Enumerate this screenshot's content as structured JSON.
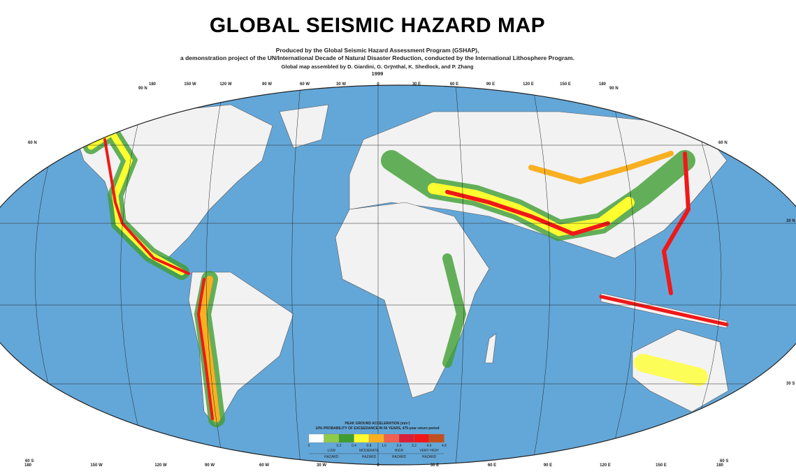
{
  "title": "GLOBAL SEISMIC HAZARD MAP",
  "subtitle1": "Produced by the Global Seismic Hazard Assessment Program (GSHAP),",
  "subtitle2": "a demonstration project of the UN/International Decade of Natural Disaster Reduction, conducted by the International Lithosphere Program.",
  "credits": "Global map assembled by D. Giardini, G. Grÿnthal, K. Shedlock, and P. Zhang",
  "year": "1999",
  "longitudes": [
    "180",
    "150 W",
    "120 W",
    "90 W",
    "60 W",
    "30 W",
    "0",
    "30 E",
    "60 E",
    "90 E",
    "120 E",
    "150 E",
    "180"
  ],
  "latitudes": {
    "top": "90 N",
    "n60": "60 N",
    "n30": "30 N",
    "s30": "30 S",
    "bottom": "60 S"
  },
  "legend": {
    "title": "PEAK GROUND ACCELERATION (m/s²)",
    "subtitle": "10% PROBABILITY OF EXCEEDANCE IN 50 YEARS, 475-year return period",
    "ticks": [
      "0",
      "0.2",
      "0.4",
      "0.8",
      "1.6",
      "2.4",
      "3.2",
      "4.0",
      "4.8"
    ],
    "colors": [
      "#ffffff",
      "#8fcb4a",
      "#3f9e32",
      "#ffff30",
      "#f8b020",
      "#f06050",
      "#d8203a",
      "#f01818",
      "#c05020"
    ],
    "classes": [
      {
        "top": "LOW",
        "bottom": "HAZARD"
      },
      {
        "top": "MODERATE",
        "bottom": "HAZARD"
      },
      {
        "top": "HIGH",
        "bottom": "HAZARD"
      },
      {
        "top": "VERY HIGH",
        "bottom": "HAZARD"
      }
    ]
  },
  "colors": {
    "ocean": "#5a9fd4",
    "land": "#f2f2f2"
  }
}
